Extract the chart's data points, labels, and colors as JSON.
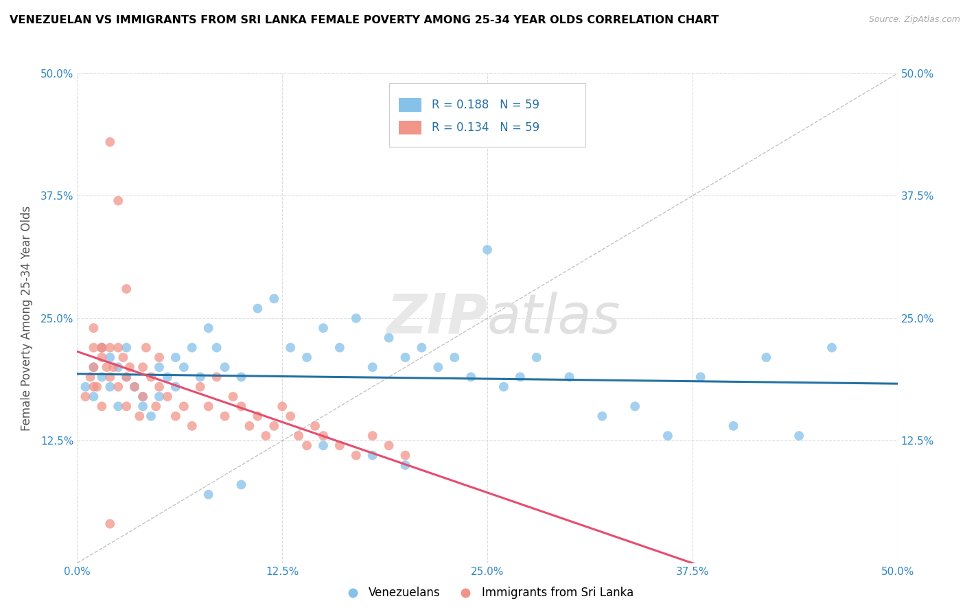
{
  "title": "VENEZUELAN VS IMMIGRANTS FROM SRI LANKA FEMALE POVERTY AMONG 25-34 YEAR OLDS CORRELATION CHART",
  "source": "Source: ZipAtlas.com",
  "ylabel": "Female Poverty Among 25-34 Year Olds",
  "xlim": [
    0.0,
    0.5
  ],
  "ylim": [
    0.0,
    0.5
  ],
  "xtick_labels": [
    "0.0%",
    "12.5%",
    "25.0%",
    "37.5%",
    "50.0%"
  ],
  "xtick_vals": [
    0.0,
    0.125,
    0.25,
    0.375,
    0.5
  ],
  "ytick_labels": [
    "12.5%",
    "25.0%",
    "37.5%",
    "50.0%"
  ],
  "ytick_vals": [
    0.125,
    0.25,
    0.375,
    0.5
  ],
  "R_venezuelan": 0.188,
  "N_venezuelan": 59,
  "R_srilanka": 0.134,
  "N_srilanka": 59,
  "color_venezuelan": "#85c1e9",
  "color_srilanka": "#f1948a",
  "line_color_venezuelan": "#2471a3",
  "line_color_srilanka": "#e74c6e",
  "watermark_zip": "ZIP",
  "watermark_atlas": "atlas",
  "legend_label_venezuelan": "Venezuelans",
  "legend_label_srilanka": "Immigrants from Sri Lanka",
  "vx": [
    0.005,
    0.01,
    0.01,
    0.015,
    0.015,
    0.02,
    0.02,
    0.025,
    0.025,
    0.03,
    0.03,
    0.035,
    0.04,
    0.04,
    0.045,
    0.05,
    0.05,
    0.055,
    0.06,
    0.06,
    0.065,
    0.07,
    0.075,
    0.08,
    0.085,
    0.09,
    0.1,
    0.11,
    0.12,
    0.13,
    0.14,
    0.15,
    0.16,
    0.17,
    0.18,
    0.19,
    0.2,
    0.21,
    0.22,
    0.23,
    0.24,
    0.25,
    0.26,
    0.27,
    0.28,
    0.3,
    0.32,
    0.34,
    0.36,
    0.38,
    0.4,
    0.42,
    0.44,
    0.46,
    0.2,
    0.15,
    0.18,
    0.1,
    0.08
  ],
  "vy": [
    0.18,
    0.2,
    0.17,
    0.19,
    0.22,
    0.18,
    0.21,
    0.16,
    0.2,
    0.19,
    0.22,
    0.18,
    0.17,
    0.16,
    0.15,
    0.17,
    0.2,
    0.19,
    0.21,
    0.18,
    0.2,
    0.22,
    0.19,
    0.24,
    0.22,
    0.2,
    0.19,
    0.26,
    0.27,
    0.22,
    0.21,
    0.24,
    0.22,
    0.25,
    0.2,
    0.23,
    0.21,
    0.22,
    0.2,
    0.21,
    0.19,
    0.32,
    0.18,
    0.19,
    0.21,
    0.19,
    0.15,
    0.16,
    0.13,
    0.19,
    0.14,
    0.21,
    0.13,
    0.22,
    0.1,
    0.12,
    0.11,
    0.08,
    0.07
  ],
  "slx": [
    0.005,
    0.008,
    0.01,
    0.01,
    0.012,
    0.015,
    0.015,
    0.018,
    0.02,
    0.02,
    0.022,
    0.025,
    0.025,
    0.028,
    0.03,
    0.03,
    0.032,
    0.035,
    0.038,
    0.04,
    0.04,
    0.042,
    0.045,
    0.048,
    0.05,
    0.05,
    0.055,
    0.06,
    0.065,
    0.07,
    0.075,
    0.08,
    0.085,
    0.09,
    0.095,
    0.1,
    0.105,
    0.11,
    0.115,
    0.12,
    0.125,
    0.13,
    0.135,
    0.14,
    0.145,
    0.15,
    0.16,
    0.17,
    0.18,
    0.19,
    0.2,
    0.02,
    0.025,
    0.03,
    0.01,
    0.015,
    0.02,
    0.015,
    0.01
  ],
  "sly": [
    0.17,
    0.19,
    0.2,
    0.22,
    0.18,
    0.16,
    0.21,
    0.2,
    0.19,
    0.22,
    0.2,
    0.18,
    0.22,
    0.21,
    0.19,
    0.16,
    0.2,
    0.18,
    0.15,
    0.17,
    0.2,
    0.22,
    0.19,
    0.16,
    0.18,
    0.21,
    0.17,
    0.15,
    0.16,
    0.14,
    0.18,
    0.16,
    0.19,
    0.15,
    0.17,
    0.16,
    0.14,
    0.15,
    0.13,
    0.14,
    0.16,
    0.15,
    0.13,
    0.12,
    0.14,
    0.13,
    0.12,
    0.11,
    0.13,
    0.12,
    0.11,
    0.43,
    0.37,
    0.28,
    0.24,
    0.22,
    0.04,
    0.22,
    0.18
  ]
}
